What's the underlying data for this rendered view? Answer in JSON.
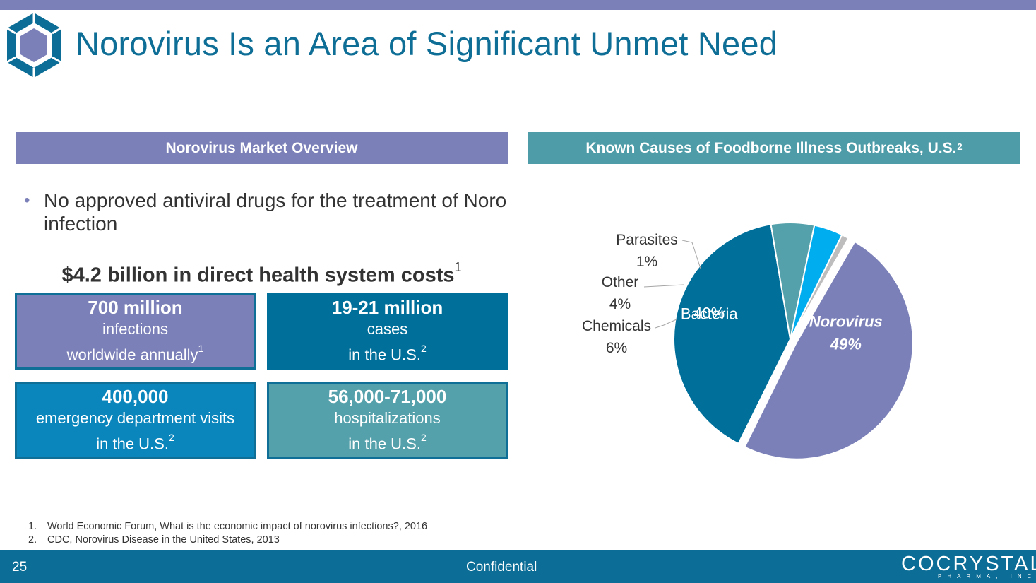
{
  "slide": {
    "title": "Norovirus Is an Area of Significant Unmet Need",
    "page_number": "25",
    "confidential": "Confidential",
    "brand": {
      "name": "COCRYSTAL",
      "sub": "PHARMA, INC"
    }
  },
  "left_header": "Norovirus Market Overview",
  "right_header": {
    "text": "Known Causes of Foodborne Illness Outbreaks, U.S.",
    "sup": "2"
  },
  "bullet": "No approved antiviral drugs for the treatment of Noro infection",
  "costs": {
    "text": "$4.2 billion in direct health system costs",
    "sup": "1"
  },
  "stats": [
    {
      "value": "700 million",
      "line1": "infections",
      "line2": "worldwide annually",
      "sup": "1"
    },
    {
      "value": "19-21 million",
      "line1": "cases",
      "line2": "in the U.S.",
      "sup": "2"
    },
    {
      "value": "400,000",
      "line1": "emergency department visits",
      "line2": "in the U.S.",
      "sup": "2"
    },
    {
      "value": "56,000-71,000",
      "line1": "hospitalizations",
      "line2": "in the U.S.",
      "sup": "2"
    }
  ],
  "footnotes": [
    {
      "num": "1.",
      "text": "World Economic Forum, What is the economic impact of norovirus infections?, 2016"
    },
    {
      "num": "2.",
      "text": "CDC, Norovirus Disease in the United States, 2013"
    }
  ],
  "colors": {
    "purple": "#7b80b8",
    "teal": "#4d9ca8",
    "dark_blue": "#0c6e96",
    "title_blue": "#0e6e96"
  },
  "chart_data": {
    "type": "pie",
    "title": "Known Causes of Foodborne Illness Outbreaks, U.S.",
    "slices": [
      {
        "label": "Norovirus",
        "value": 49,
        "display": "49%",
        "color": "#7b80b8",
        "exploded": true
      },
      {
        "label": "Bacteria",
        "value": 40,
        "display": "40%",
        "color": "#00709b"
      },
      {
        "label": "Chemicals",
        "value": 6,
        "display": "6%",
        "color": "#55a1ab"
      },
      {
        "label": "Other",
        "value": 4,
        "display": "4%",
        "color": "#00aeef"
      },
      {
        "label": "Parasites",
        "value": 1,
        "display": "1%",
        "color": "#bdbdbd"
      }
    ]
  }
}
